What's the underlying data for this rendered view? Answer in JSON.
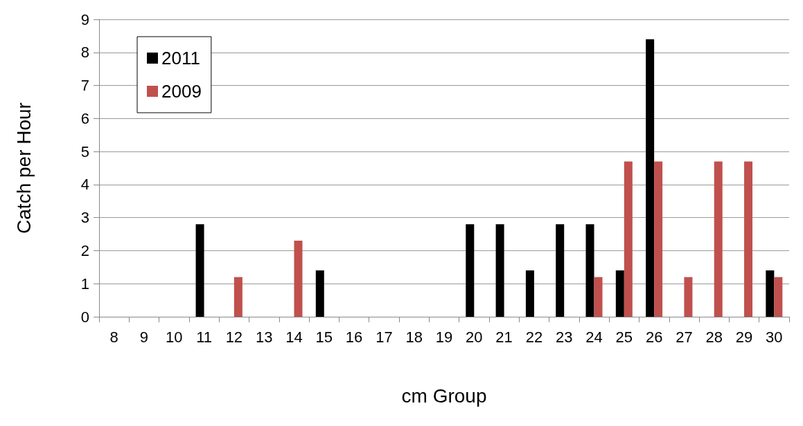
{
  "chart_data": {
    "type": "bar",
    "xlabel": "cm Group",
    "ylabel": "Catch per Hour",
    "categories": [
      "8",
      "9",
      "10",
      "11",
      "12",
      "13",
      "14",
      "15",
      "16",
      "17",
      "18",
      "19",
      "20",
      "21",
      "22",
      "23",
      "24",
      "25",
      "26",
      "27",
      "28",
      "29",
      "30"
    ],
    "series": [
      {
        "name": "2011",
        "color": "#000000",
        "values": [
          0,
          0,
          0,
          2.8,
          0,
          0,
          0,
          1.4,
          0,
          0,
          0,
          0,
          2.8,
          2.8,
          1.4,
          2.8,
          2.8,
          1.4,
          8.4,
          0,
          0,
          0,
          1.4
        ]
      },
      {
        "name": "2009",
        "color": "#c0504d",
        "values": [
          0,
          0,
          0,
          0,
          1.2,
          0,
          2.3,
          0,
          0,
          0,
          0,
          0,
          0,
          0,
          0,
          0,
          1.2,
          4.7,
          4.7,
          1.2,
          4.7,
          4.7,
          1.2
        ]
      }
    ],
    "ylim": [
      0,
      9
    ],
    "yticks": [
      0,
      1,
      2,
      3,
      4,
      5,
      6,
      7,
      8,
      9
    ],
    "grid": "y",
    "legend": "top left"
  }
}
